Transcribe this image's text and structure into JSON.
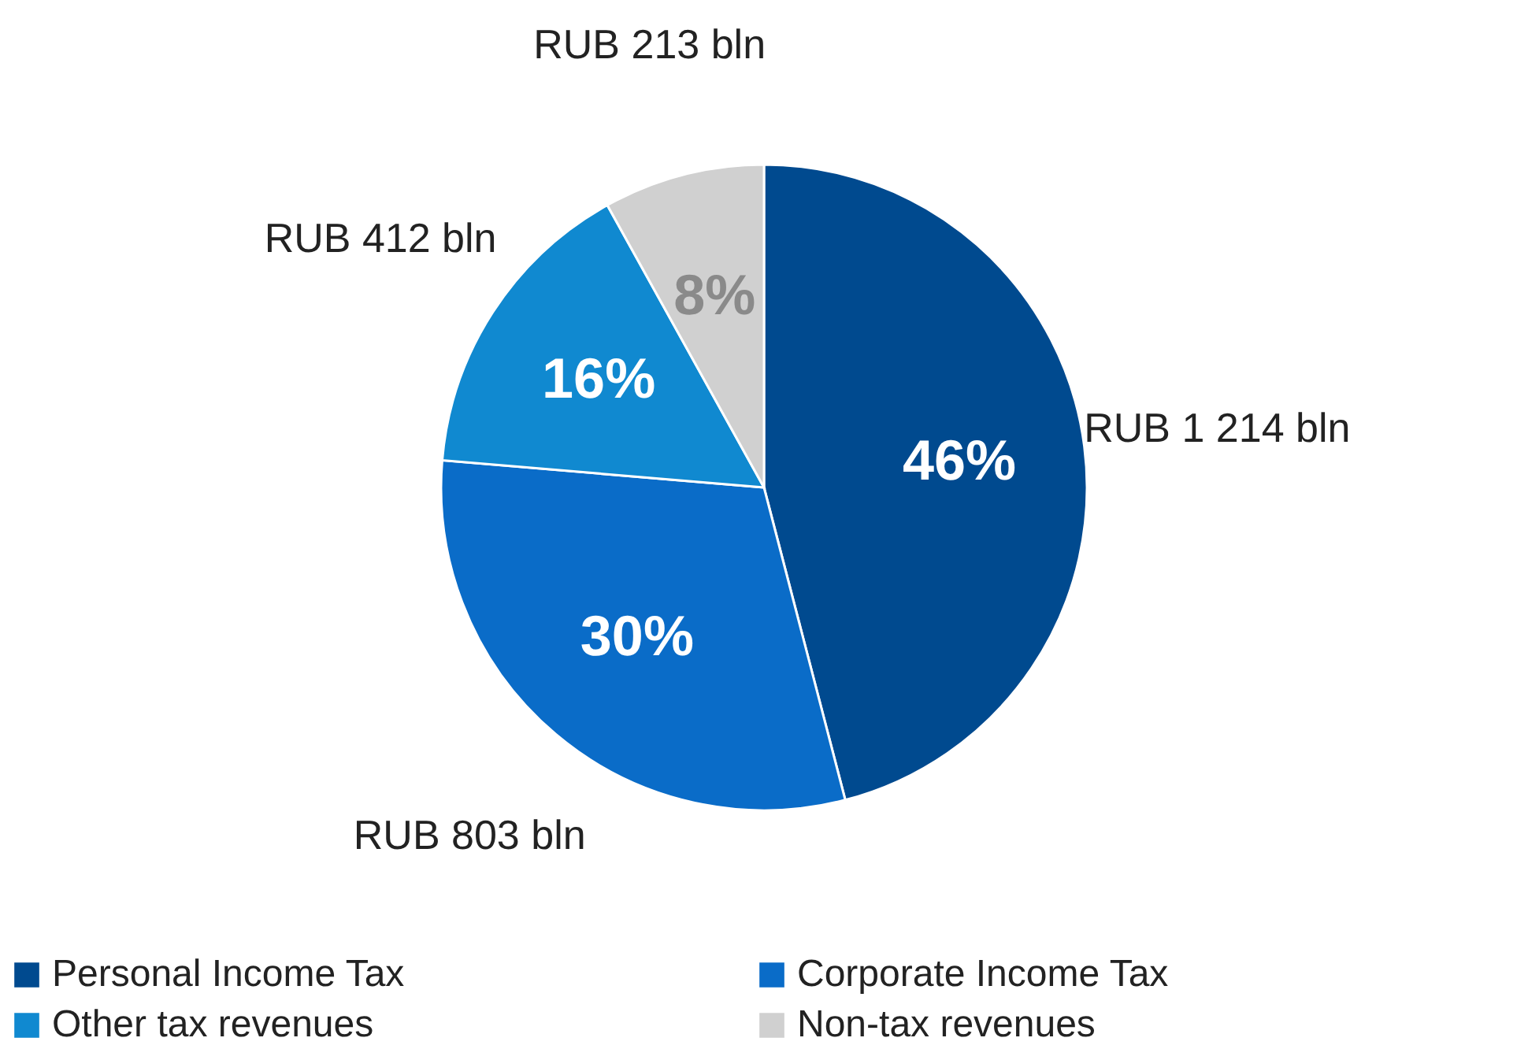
{
  "chart_data": {
    "type": "pie",
    "categories": [
      "Personal Income Tax",
      "Corporate Income Tax",
      "Other tax revenues",
      "Non-tax revenues"
    ],
    "values": [
      1214,
      803,
      412,
      213
    ],
    "colors": [
      "#004a8f",
      "#0a6cc8",
      "#1089d0",
      "#d0d0d0"
    ],
    "value_labels": [
      "RUB 1 214 bln",
      "RUB 803 bln",
      "RUB 412 bln",
      "RUB 213 bln"
    ],
    "annotations": [
      {
        "text": "46%",
        "x": "Personal Income Tax"
      },
      {
        "text": "30%",
        "x": "Corporate Income Tax"
      },
      {
        "text": "16%",
        "x": "Other tax revenues"
      },
      {
        "text": "8%",
        "x": "Non-tax revenues"
      }
    ],
    "legend": "bottom"
  }
}
